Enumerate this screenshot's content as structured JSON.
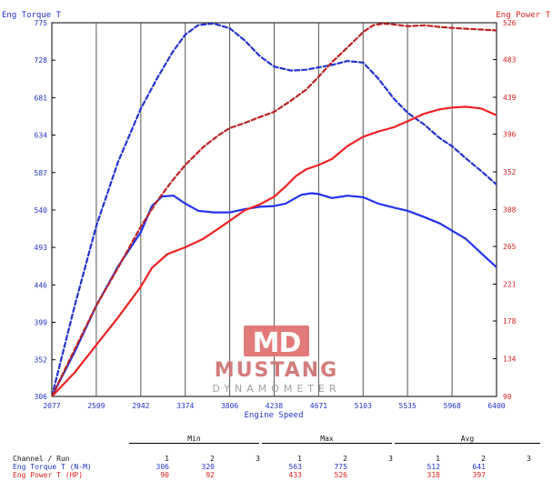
{
  "chart_data": {
    "type": "line",
    "left_axis_title": "Eng Torque T",
    "right_axis_title": "Eng Power T",
    "xlabel": "Engine Speed",
    "x_ticks": [
      "2077",
      "2509",
      "2942",
      "3374",
      "3806",
      "4238",
      "4671",
      "5103",
      "5535",
      "5968",
      "6400"
    ],
    "xlim": [
      2077,
      6400
    ],
    "y_left_ticks": [
      "306",
      "352",
      "399",
      "446",
      "493",
      "540",
      "587",
      "634",
      "681",
      "728",
      "775"
    ],
    "ylim_left": [
      306,
      775
    ],
    "y_right_ticks": [
      "90",
      "134",
      "178",
      "221",
      "265",
      "308",
      "352",
      "396",
      "439",
      "483",
      "526"
    ],
    "ylim_right": [
      90,
      526
    ],
    "grid": "vertical",
    "series": [
      {
        "name": "Eng Torque T",
        "run": "1",
        "axis": "left",
        "color": "#2233ee",
        "style": "solid",
        "x": [
          2077,
          2300,
          2509,
          2720,
          2942,
          3050,
          3150,
          3260,
          3374,
          3500,
          3650,
          3806,
          3950,
          4100,
          4238,
          4350,
          4500,
          4600,
          4671,
          4800,
          4950,
          5103,
          5250,
          5400,
          5535,
          5700,
          5850,
          5968,
          6100,
          6250,
          6400
        ],
        "y": [
          306,
          362,
          420,
          469,
          512,
          545,
          557,
          558,
          548,
          539,
          537,
          537,
          541,
          544,
          545,
          548,
          559,
          561,
          560,
          555,
          558,
          556,
          548,
          543,
          539,
          531,
          523,
          514,
          504,
          486,
          468
        ]
      },
      {
        "name": "Eng Torque T",
        "run": "2",
        "axis": "left",
        "color": "#2233cc",
        "style": "dashed",
        "x": [
          2077,
          2300,
          2509,
          2720,
          2942,
          3100,
          3250,
          3374,
          3500,
          3650,
          3806,
          3950,
          4100,
          4238,
          4400,
          4550,
          4671,
          4800,
          4950,
          5103,
          5250,
          5400,
          5535,
          5700,
          5850,
          5968,
          6100,
          6250,
          6400
        ],
        "y": [
          306,
          420,
          520,
          600,
          667,
          705,
          738,
          760,
          772,
          774,
          768,
          753,
          733,
          720,
          715,
          716,
          719,
          722,
          727,
          725,
          705,
          680,
          662,
          647,
          630,
          620,
          605,
          589,
          572
        ]
      },
      {
        "name": "Eng Power T",
        "run": "1",
        "axis": "right",
        "color": "#ee2222",
        "style": "solid",
        "x": [
          2077,
          2300,
          2509,
          2720,
          2942,
          3050,
          3200,
          3374,
          3550,
          3700,
          3806,
          3950,
          4100,
          4238,
          4350,
          4450,
          4550,
          4671,
          4800,
          4950,
          5103,
          5250,
          5400,
          5535,
          5700,
          5850,
          5968,
          6100,
          6250,
          6400
        ],
        "y": [
          90,
          118,
          150,
          182,
          218,
          240,
          256,
          264,
          274,
          286,
          295,
          307,
          314,
          323,
          335,
          347,
          355,
          360,
          367,
          382,
          393,
          399,
          404,
          411,
          420,
          425,
          427,
          428,
          426,
          418
        ]
      },
      {
        "name": "Eng Power T",
        "run": "2",
        "axis": "right",
        "color": "#bb2222",
        "style": "dashed",
        "x": [
          2077,
          2300,
          2509,
          2720,
          2942,
          3100,
          3250,
          3374,
          3550,
          3700,
          3806,
          3950,
          4100,
          4238,
          4400,
          4550,
          4671,
          4800,
          4950,
          5103,
          5200,
          5300,
          5400,
          5535,
          5700,
          5850,
          5968,
          6100,
          6250,
          6400
        ],
        "y": [
          90,
          145,
          196,
          240,
          288,
          318,
          342,
          360,
          381,
          395,
          403,
          409,
          416,
          422,
          435,
          448,
          463,
          480,
          497,
          515,
          523,
          525,
          524,
          522,
          523,
          521,
          520,
          519,
          518,
          517
        ]
      }
    ]
  },
  "watermark": {
    "logo": "MD",
    "name": "MUSTANG",
    "sub": "DYNAMOMETER"
  },
  "table": {
    "group_headers": {
      "min": "Min",
      "max": "Max",
      "avg": "Avg"
    },
    "row_header_label": "Channel / Run",
    "run_numbers": [
      "1",
      "2",
      "3"
    ],
    "rows": [
      {
        "label": "Eng Torque T (N-M)",
        "min": [
          "306",
          "320",
          ""
        ],
        "max": [
          "563",
          "775",
          ""
        ],
        "avg": [
          "512",
          "641",
          ""
        ]
      },
      {
        "label": "Eng Power T (HP)",
        "min": [
          "90",
          "92",
          ""
        ],
        "max": [
          "433",
          "526",
          ""
        ],
        "avg": [
          "318",
          "397",
          ""
        ]
      }
    ]
  }
}
